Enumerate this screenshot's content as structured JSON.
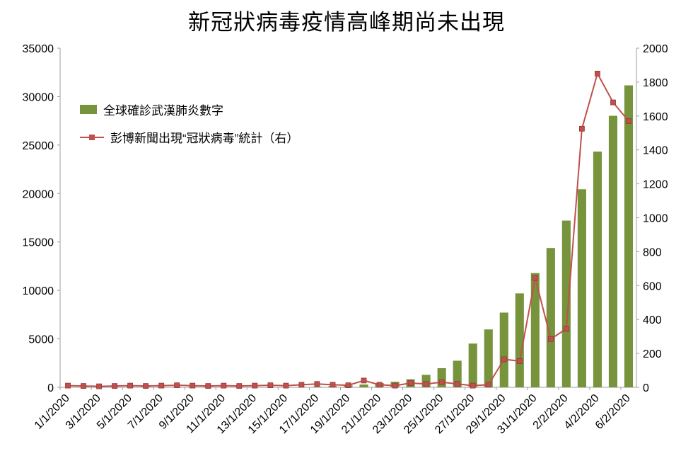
{
  "title": "新冠狀病毒疫情高峰期尚未出現",
  "legend": {
    "bars_label": "全球確診武漢肺炎數字",
    "line_label": "彭博新聞出現“冠狀病毒”統計（右）"
  },
  "colors": {
    "bar": "#77933C",
    "line": "#C0504D",
    "axis": "#9e9e9e",
    "text": "#000000"
  },
  "chart_data": {
    "type": "bar+line",
    "title": "新冠狀病毒疫情高峰期尚未出現",
    "x": [
      "1/1/2020",
      "2/1/2020",
      "3/1/2020",
      "4/1/2020",
      "5/1/2020",
      "6/1/2020",
      "7/1/2020",
      "8/1/2020",
      "9/1/2020",
      "10/1/2020",
      "11/1/2020",
      "12/1/2020",
      "13/1/2020",
      "14/1/2020",
      "15/1/2020",
      "16/1/2020",
      "17/1/2020",
      "18/1/2020",
      "19/1/2020",
      "20/1/2020",
      "21/1/2020",
      "22/1/2020",
      "23/1/2020",
      "24/1/2020",
      "25/1/2020",
      "26/1/2020",
      "27/1/2020",
      "28/1/2020",
      "29/1/2020",
      "30/1/2020",
      "31/1/2020",
      "1/2/2020",
      "2/2/2020",
      "3/2/2020",
      "4/2/2020",
      "5/2/2020",
      "6/2/2020"
    ],
    "x_tick_every": 2,
    "series": [
      {
        "name": "全球確診武漢肺炎數字",
        "type": "bar",
        "axis": "left",
        "values": [
          27,
          27,
          44,
          44,
          59,
          59,
          59,
          59,
          59,
          59,
          41,
          41,
          41,
          41,
          41,
          45,
          62,
          121,
          198,
          291,
          440,
          571,
          830,
          1287,
          1975,
          2744,
          4515,
          5974,
          7711,
          9692,
          11791,
          14380,
          17205,
          20438,
          24324,
          28018,
          31161
        ]
      },
      {
        "name": "彭博新聞出現“冠狀病毒”統計（右）",
        "type": "line",
        "axis": "right",
        "values": [
          10,
          8,
          6,
          8,
          10,
          8,
          10,
          12,
          10,
          8,
          10,
          8,
          10,
          12,
          10,
          15,
          20,
          15,
          12,
          40,
          15,
          10,
          25,
          20,
          30,
          20,
          10,
          15,
          165,
          155,
          645,
          285,
          345,
          1525,
          1850,
          1680,
          1570
        ]
      }
    ],
    "left_axis": {
      "min": 0,
      "max": 35000,
      "step": 5000
    },
    "right_axis": {
      "min": 0,
      "max": 2000,
      "step": 200
    },
    "grid": false,
    "legend_position": "inside-upper-left"
  }
}
